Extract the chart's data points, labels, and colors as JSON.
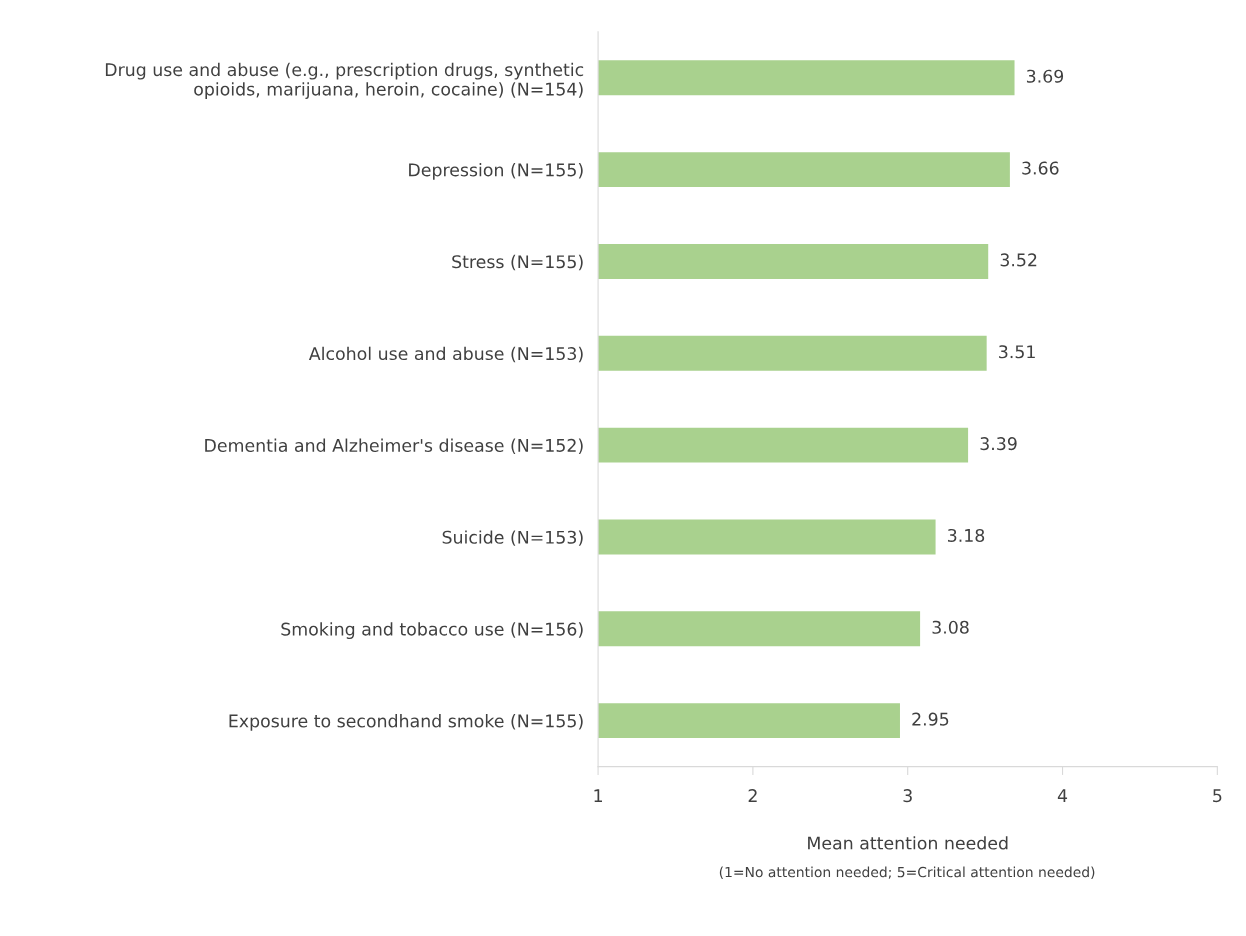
{
  "chart_data": {
    "type": "bar",
    "orientation": "horizontal",
    "categories": [
      "Drug use and abuse (e.g., prescription drugs, synthetic\nopioids, marijuana, heroin, cocaine) (N=154)",
      "Depression (N=155)",
      "Stress (N=155)",
      "Alcohol use and abuse (N=153)",
      "Dementia and Alzheimer's disease (N=152)",
      "Suicide (N=153)",
      "Smoking and tobacco use (N=156)",
      "Exposure to secondhand smoke (N=155)"
    ],
    "values": [
      3.69,
      3.66,
      3.52,
      3.51,
      3.39,
      3.18,
      3.08,
      2.95
    ],
    "color": "#a9d18e",
    "xlim": [
      1,
      5
    ],
    "xticks": [
      1,
      2,
      3,
      4,
      5
    ],
    "xlabel": "Mean attention needed",
    "annotations": [
      "(1=No attention needed; 5=Critical attention needed)"
    ],
    "data_labels": true,
    "grid": false,
    "legend": false
  }
}
